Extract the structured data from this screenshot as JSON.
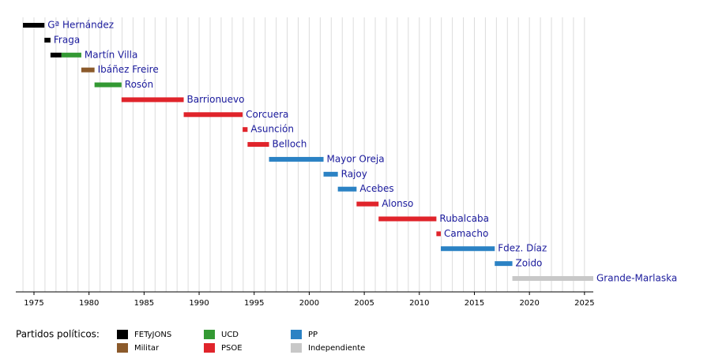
{
  "chart_data": {
    "type": "timeline",
    "xlim": [
      1973.35,
      2025.8
    ],
    "xticks": [
      1975,
      1980,
      1985,
      1990,
      1995,
      2000,
      2005,
      2010,
      2015,
      2020,
      2025
    ],
    "minor_xticks": [
      1974,
      1975,
      1976,
      1977,
      1978,
      1979,
      1980,
      1981,
      1982,
      1983,
      1984,
      1985,
      1986,
      1987,
      1988,
      1989,
      1990,
      1991,
      1992,
      1993,
      1994,
      1995,
      1996,
      1997,
      1998,
      1999,
      2000,
      2001,
      2002,
      2003,
      2004,
      2005,
      2006,
      2007,
      2008,
      2009,
      2010,
      2011,
      2012,
      2013,
      2014,
      2015,
      2016,
      2017,
      2018,
      2019,
      2020,
      2021,
      2022,
      2023,
      2024,
      2025
    ],
    "grid": true,
    "legend_title": "Partidos políticos:",
    "parties": [
      {
        "name": "FETyJONS",
        "color": "#000000"
      },
      {
        "name": "Militar",
        "color": "#8b5a2b"
      },
      {
        "name": "UCD",
        "color": "#339933"
      },
      {
        "name": "PSOE",
        "color": "#e0242b"
      },
      {
        "name": "PP",
        "color": "#2b82c4"
      },
      {
        "name": "Independiente",
        "color": "#c8c8c8"
      }
    ],
    "rows": [
      {
        "label": "Gª Hernández",
        "segments": [
          {
            "start": 1974.0,
            "end": 1975.95,
            "party": "FETyJONS"
          }
        ]
      },
      {
        "label": "Fraga",
        "segments": [
          {
            "start": 1975.95,
            "end": 1976.5,
            "party": "FETyJONS"
          }
        ]
      },
      {
        "label": "Martín Villa",
        "segments": [
          {
            "start": 1976.5,
            "end": 1977.5,
            "party": "FETyJONS"
          },
          {
            "start": 1977.5,
            "end": 1979.3,
            "party": "UCD"
          }
        ]
      },
      {
        "label": "Ibáñez Freire",
        "segments": [
          {
            "start": 1979.3,
            "end": 1980.5,
            "party": "Militar"
          }
        ]
      },
      {
        "label": "Rosón",
        "segments": [
          {
            "start": 1980.5,
            "end": 1982.95,
            "party": "UCD"
          }
        ]
      },
      {
        "label": "Barrionuevo",
        "segments": [
          {
            "start": 1982.95,
            "end": 1988.6,
            "party": "PSOE"
          }
        ]
      },
      {
        "label": "Corcuera",
        "segments": [
          {
            "start": 1988.6,
            "end": 1993.95,
            "party": "PSOE"
          }
        ]
      },
      {
        "label": "Asunción",
        "segments": [
          {
            "start": 1993.95,
            "end": 1994.4,
            "party": "PSOE"
          }
        ]
      },
      {
        "label": "Belloch",
        "segments": [
          {
            "start": 1994.4,
            "end": 1996.35,
            "party": "PSOE"
          }
        ]
      },
      {
        "label": "Mayor Oreja",
        "segments": [
          {
            "start": 1996.35,
            "end": 2001.3,
            "party": "PP"
          }
        ]
      },
      {
        "label": "Rajoy",
        "segments": [
          {
            "start": 2001.3,
            "end": 2002.6,
            "party": "PP"
          }
        ]
      },
      {
        "label": "Acebes",
        "segments": [
          {
            "start": 2002.6,
            "end": 2004.3,
            "party": "PP"
          }
        ]
      },
      {
        "label": "Alonso",
        "segments": [
          {
            "start": 2004.3,
            "end": 2006.3,
            "party": "PSOE"
          }
        ]
      },
      {
        "label": "Rubalcaba",
        "segments": [
          {
            "start": 2006.3,
            "end": 2011.55,
            "party": "PSOE"
          }
        ]
      },
      {
        "label": "Camacho",
        "segments": [
          {
            "start": 2011.55,
            "end": 2011.95,
            "party": "PSOE"
          }
        ]
      },
      {
        "label": "Fdez. Díaz",
        "segments": [
          {
            "start": 2011.95,
            "end": 2016.85,
            "party": "PP"
          }
        ]
      },
      {
        "label": "Zoido",
        "segments": [
          {
            "start": 2016.85,
            "end": 2018.45,
            "party": "PP"
          }
        ]
      },
      {
        "label": "Grande-Marlaska",
        "segments": [
          {
            "start": 2018.45,
            "end": 2025.8,
            "party": "Independiente"
          }
        ]
      }
    ]
  }
}
